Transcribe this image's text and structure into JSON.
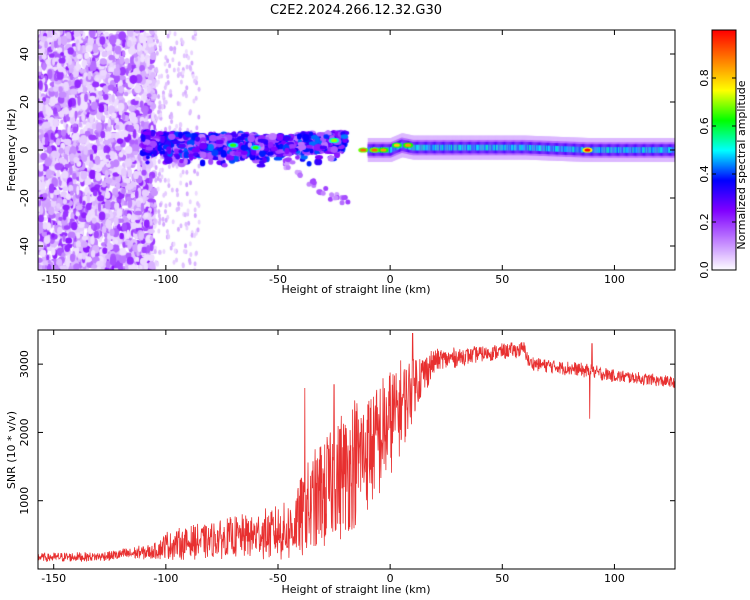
{
  "title": "C2E2.2024.266.12.32.G30",
  "chart_data": [
    {
      "type": "heatmap",
      "xlabel": "Height of straight line (km)",
      "ylabel": "Frequency (Hz)",
      "colorbar_label": "Normalized spectral amplitude",
      "xlim": [
        -157,
        127
      ],
      "ylim": [
        -50,
        50
      ],
      "xticks": [
        -150,
        -100,
        -50,
        0,
        50,
        100
      ],
      "yticks": [
        -40,
        -20,
        0,
        20,
        40
      ],
      "colorbar_range": [
        0,
        1
      ],
      "colorbar_ticks": [
        "0.0",
        "0.2",
        "0.4",
        "0.6",
        "0.8"
      ],
      "colorbar_tick_values": [
        0,
        0.2,
        0.4,
        0.6,
        0.8
      ],
      "colormap": [
        "#ffffff",
        "#c080ff",
        "#8000ff",
        "#0000ff",
        "#00ffff",
        "#00ff00",
        "#ffff00",
        "#ff8000",
        "#ff0000"
      ],
      "grid": false,
      "features": {
        "noise_region_x": [
          -157,
          -105
        ],
        "sparse_noise_x": [
          -105,
          -85
        ],
        "dispersed_band_x": [
          -110,
          -20
        ],
        "dispersed_band_amplitude": 0.35,
        "faint_tail": [
          [
            -45,
            -6
          ],
          [
            -40,
            -10
          ],
          [
            -35,
            -14
          ],
          [
            -30,
            -17
          ],
          [
            -25,
            -20
          ],
          [
            -20,
            -21
          ]
        ],
        "narrow_line_x": [
          -10,
          127
        ],
        "narrow_line_centerline": [
          [
            -110,
            3
          ],
          [
            -90,
            2
          ],
          [
            -70,
            2
          ],
          [
            -50,
            2
          ],
          [
            -30,
            3
          ],
          [
            -20,
            4
          ],
          [
            -15,
            2
          ],
          [
            -10,
            0
          ],
          [
            0,
            0
          ],
          [
            5,
            2
          ],
          [
            10,
            1
          ],
          [
            30,
            1
          ],
          [
            60,
            1
          ],
          [
            88,
            0
          ],
          [
            127,
            0
          ]
        ],
        "line_amplitude": 0.5,
        "peaks": [
          {
            "x": -12,
            "y": 0,
            "amp": 0.9
          },
          {
            "x": -7,
            "y": 0,
            "amp": 0.9
          },
          {
            "x": -3,
            "y": 0,
            "amp": 0.85
          },
          {
            "x": 3,
            "y": 2,
            "amp": 0.8
          },
          {
            "x": 8,
            "y": 2,
            "amp": 0.85
          },
          {
            "x": 88,
            "y": 0,
            "amp": 1.0
          },
          {
            "x": -25,
            "y": 4,
            "amp": 0.7
          },
          {
            "x": -70,
            "y": 2,
            "amp": 0.65
          },
          {
            "x": -60,
            "y": 1,
            "amp": 0.65
          }
        ]
      }
    },
    {
      "type": "line",
      "xlabel": "Height of straight line (km)",
      "ylabel": "SNR (10 * v/v)",
      "xlim": [
        -157,
        127
      ],
      "ylim": [
        0,
        3500
      ],
      "xticks": [
        -150,
        -100,
        -50,
        0,
        50,
        100
      ],
      "yticks": [
        1000,
        2000,
        3000
      ],
      "grid": false,
      "series": [
        {
          "color": "#e83030",
          "envelope": [
            {
              "x": -157,
              "mean": 170,
              "amp": 70
            },
            {
              "x": -130,
              "mean": 180,
              "amp": 70
            },
            {
              "x": -105,
              "mean": 260,
              "amp": 120
            },
            {
              "x": -100,
              "mean": 350,
              "amp": 220
            },
            {
              "x": -80,
              "mean": 420,
              "amp": 280
            },
            {
              "x": -60,
              "mean": 500,
              "amp": 350
            },
            {
              "x": -45,
              "mean": 550,
              "amp": 450
            },
            {
              "x": -38,
              "mean": 800,
              "amp": 700
            },
            {
              "x": -25,
              "mean": 1300,
              "amp": 1000
            },
            {
              "x": -15,
              "mean": 1600,
              "amp": 1000
            },
            {
              "x": -5,
              "mean": 1900,
              "amp": 900
            },
            {
              "x": 5,
              "mean": 2400,
              "amp": 700
            },
            {
              "x": 12,
              "mean": 2750,
              "amp": 450
            },
            {
              "x": 20,
              "mean": 3050,
              "amp": 180
            },
            {
              "x": 40,
              "mean": 3150,
              "amp": 120
            },
            {
              "x": 60,
              "mean": 3220,
              "amp": 120
            },
            {
              "x": 62,
              "mean": 3020,
              "amp": 110
            },
            {
              "x": 88,
              "mean": 2900,
              "amp": 110
            },
            {
              "x": 100,
              "mean": 2830,
              "amp": 100
            },
            {
              "x": 127,
              "mean": 2730,
              "amp": 90
            }
          ],
          "spikes": [
            {
              "x": 10,
              "y": 3450
            },
            {
              "x": 90,
              "y": 3300
            },
            {
              "x": 89,
              "y": 2200
            },
            {
              "x": -38,
              "y": 2650
            },
            {
              "x": -25,
              "y": 2700
            }
          ]
        }
      ]
    }
  ]
}
